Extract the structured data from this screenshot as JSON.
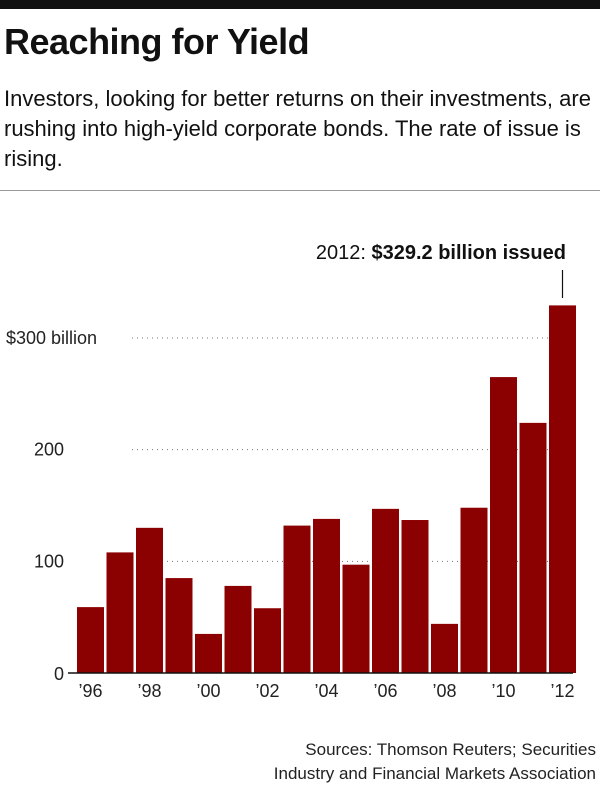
{
  "header": {
    "title": "Reaching for Yield",
    "subtitle": "Investors, looking for better returns on their investments, are rushing into high-yield corporate bonds. The rate of issue is rising."
  },
  "chart_data": {
    "type": "bar",
    "categories": [
      "1996",
      "1997",
      "1998",
      "1999",
      "2000",
      "2001",
      "2002",
      "2003",
      "2004",
      "2005",
      "2006",
      "2007",
      "2008",
      "2009",
      "2010",
      "2011",
      "2012"
    ],
    "values": [
      59,
      108,
      130,
      85,
      35,
      78,
      58,
      132,
      138,
      97,
      147,
      137,
      44,
      148,
      265,
      224,
      329.2
    ],
    "xticks": [
      "’96",
      "’98",
      "’00",
      "’02",
      "’04",
      "’06",
      "’08",
      "’10",
      "’12"
    ],
    "yticks": [
      {
        "value": 0,
        "label": "0"
      },
      {
        "value": 100,
        "label": "100"
      },
      {
        "value": 200,
        "label": "200"
      },
      {
        "value": 300,
        "label": "$300 billion"
      }
    ],
    "ylim": [
      0,
      340
    ],
    "annotation": {
      "year_prefix": "2012:",
      "text": "$329.2 billion issued"
    },
    "bar_color": "#8b0000",
    "grid": "dotted horizontal"
  },
  "footer": {
    "source_line1": "Sources: Thomson Reuters; Securities",
    "source_line2": "Industry and Financial Markets Association"
  }
}
